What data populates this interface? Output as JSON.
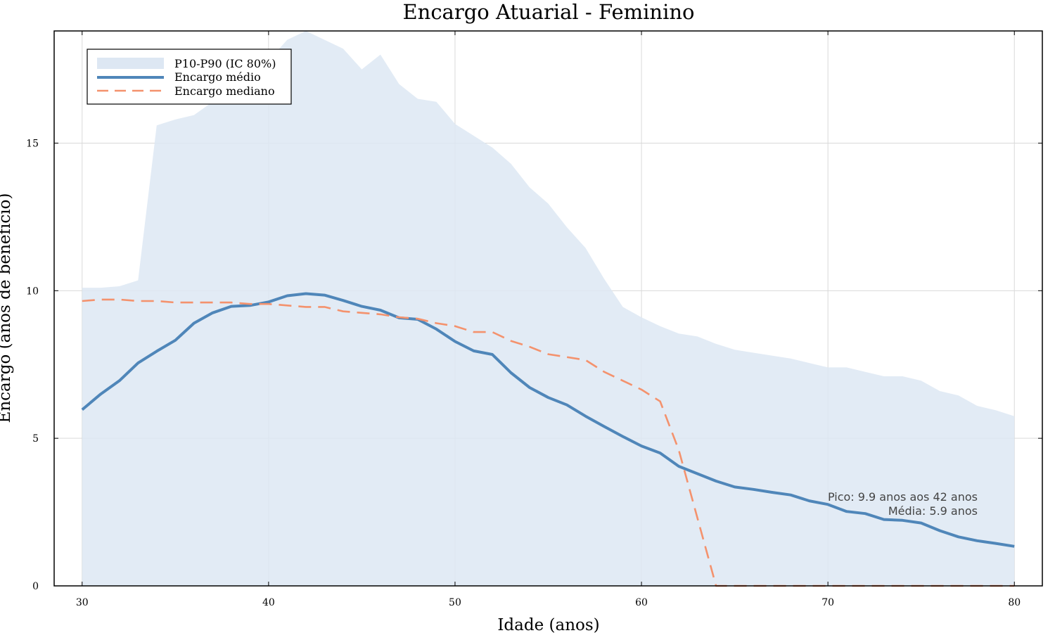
{
  "chart_data": {
    "type": "line",
    "title": "Encargo Atuarial - Feminino",
    "xlabel": "Idade (anos)",
    "ylabel": "Encargo (anos de benefício)",
    "xlim": [
      28.5,
      81.5
    ],
    "ylim": [
      0,
      18.8
    ],
    "xticks": [
      30,
      40,
      50,
      60,
      70,
      80
    ],
    "yticks": [
      0,
      5,
      10,
      15
    ],
    "grid": true,
    "legend_position": "top-left",
    "x": [
      30,
      31,
      32,
      33,
      34,
      35,
      36,
      37,
      38,
      39,
      40,
      41,
      42,
      43,
      44,
      45,
      46,
      47,
      48,
      49,
      50,
      51,
      52,
      53,
      54,
      55,
      56,
      57,
      58,
      59,
      60,
      61,
      62,
      63,
      64,
      65,
      66,
      67,
      68,
      69,
      70,
      71,
      72,
      73,
      74,
      75,
      76,
      77,
      78,
      79,
      80
    ],
    "band": {
      "name": "P10-P90 (IC 80%)",
      "color": "#dde7f3",
      "lower": [
        0,
        0,
        0,
        0,
        0,
        0,
        0,
        0,
        0,
        0,
        0,
        0,
        0,
        0,
        0,
        0,
        0,
        0,
        0,
        0,
        0,
        0,
        0,
        0,
        0,
        0,
        0,
        0,
        0,
        0,
        0,
        0,
        0,
        0,
        0,
        0,
        0,
        0,
        0,
        0,
        0,
        0,
        0,
        0,
        0,
        0,
        0,
        0,
        0,
        0,
        0
      ],
      "upper": [
        10.1,
        10.1,
        10.15,
        10.35,
        15.6,
        15.8,
        15.95,
        16.4,
        16.6,
        16.6,
        17.8,
        18.5,
        18.8,
        18.5,
        18.2,
        17.5,
        18.0,
        17.0,
        16.5,
        16.4,
        15.65,
        15.25,
        14.85,
        14.3,
        13.5,
        12.95,
        12.15,
        11.45,
        10.4,
        9.45,
        9.1,
        8.8,
        8.55,
        8.45,
        8.2,
        8.0,
        7.9,
        7.8,
        7.7,
        7.55,
        7.4,
        7.4,
        7.25,
        7.1,
        7.1,
        6.95,
        6.6,
        6.45,
        6.1,
        5.95,
        5.75
      ]
    },
    "series": [
      {
        "name": "Encargo médio",
        "color": "#4f86b9",
        "style": "solid",
        "values": [
          5.97,
          6.5,
          6.95,
          7.55,
          7.95,
          8.32,
          8.9,
          9.25,
          9.47,
          9.5,
          9.62,
          9.83,
          9.9,
          9.85,
          9.67,
          9.47,
          9.34,
          9.08,
          9.03,
          8.7,
          8.28,
          7.96,
          7.84,
          7.22,
          6.72,
          6.38,
          6.13,
          5.75,
          5.4,
          5.06,
          4.74,
          4.5,
          4.05,
          3.8,
          3.55,
          3.35,
          3.27,
          3.17,
          3.08,
          2.88,
          2.76,
          2.52,
          2.45,
          2.25,
          2.22,
          2.13,
          1.87,
          1.66,
          1.53,
          1.44,
          1.34
        ]
      },
      {
        "name": "Encargo mediano",
        "color": "#f4926d",
        "style": "dashed",
        "values": [
          9.65,
          9.7,
          9.7,
          9.65,
          9.65,
          9.6,
          9.6,
          9.6,
          9.6,
          9.55,
          9.55,
          9.5,
          9.45,
          9.45,
          9.3,
          9.25,
          9.2,
          9.1,
          9.05,
          8.9,
          8.8,
          8.6,
          8.6,
          8.3,
          8.1,
          7.85,
          7.75,
          7.65,
          7.25,
          6.95,
          6.65,
          6.25,
          4.6,
          2.3,
          0,
          0,
          0,
          0,
          0,
          0,
          0,
          0,
          0,
          0,
          0,
          0,
          0,
          0,
          0,
          0,
          0
        ]
      }
    ],
    "annotations": [
      "Pico: 9.9 anos aos 42 anos",
      "Média: 5.9 anos"
    ]
  }
}
